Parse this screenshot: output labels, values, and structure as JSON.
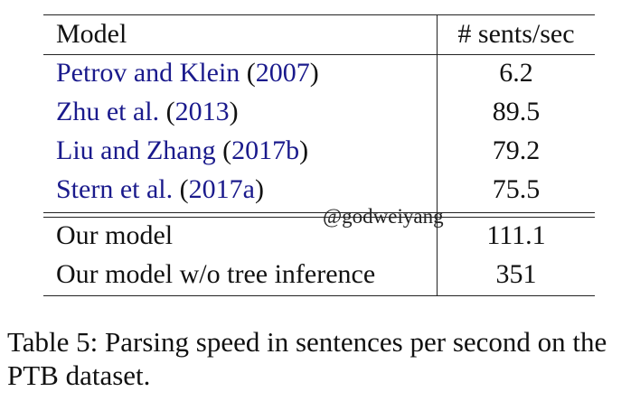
{
  "table": {
    "headers": {
      "model": "Model",
      "speed": "# sents/sec"
    },
    "cited_rows": [
      {
        "author": "Petrov and Klein",
        "open": " (",
        "year": "2007",
        "close": ")",
        "speed": "6.2"
      },
      {
        "author": "Zhu et al.",
        "open": " (",
        "year": "2013",
        "close": ")",
        "speed": "89.5"
      },
      {
        "author": "Liu and Zhang",
        "open": " (",
        "year": "2017b",
        "close": ")",
        "speed": "79.2"
      },
      {
        "author": "Stern et al.",
        "open": " (",
        "year": "2017a",
        "close": ")",
        "speed": "75.5"
      }
    ],
    "own_rows": [
      {
        "model": "Our model",
        "speed": "111.1"
      },
      {
        "model": "Our model w/o tree inference",
        "speed": "351"
      }
    ]
  },
  "watermark": "@godweiyang",
  "caption": "Table 5: Parsing speed in sentences per second on the PTB dataset."
}
